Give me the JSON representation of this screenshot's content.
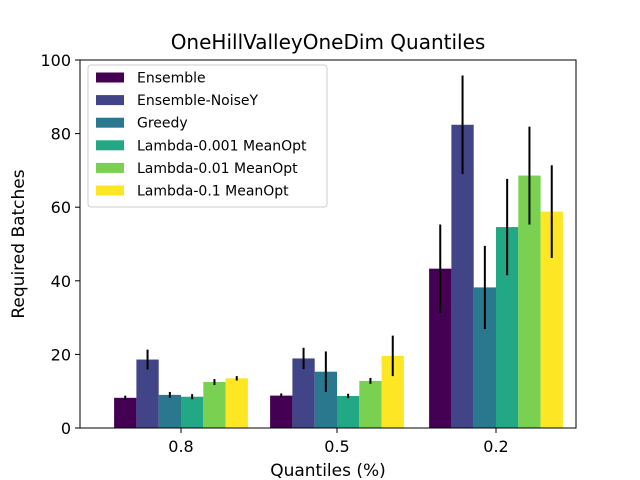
{
  "chart_data": {
    "type": "bar",
    "title": "OneHillValleyOneDim Quantiles",
    "xlabel": "Quantiles (%)",
    "ylabel": "Required Batches",
    "categories": [
      "0.8",
      "0.5",
      "0.2"
    ],
    "ylim": [
      0,
      100
    ],
    "yticks": [
      0,
      20,
      40,
      60,
      80,
      100
    ],
    "legend_position": "top-left",
    "grid": false,
    "series": [
      {
        "name": "Ensemble",
        "color": "#440154",
        "values": [
          8.2,
          8.8,
          43.3
        ],
        "errors": [
          0.6,
          0.6,
          12.0
        ]
      },
      {
        "name": "Ensemble-NoiseY",
        "color": "#414487",
        "values": [
          18.6,
          18.9,
          82.4
        ],
        "errors": [
          2.7,
          2.9,
          13.4
        ]
      },
      {
        "name": "Greedy",
        "color": "#2a788e",
        "values": [
          9.0,
          15.3,
          38.2
        ],
        "errors": [
          0.8,
          5.5,
          11.3
        ]
      },
      {
        "name": "Lambda-0.001 MeanOpt",
        "color": "#22a884",
        "values": [
          8.5,
          8.7,
          54.6
        ],
        "errors": [
          0.7,
          0.6,
          13.1
        ]
      },
      {
        "name": "Lambda-0.01 MeanOpt",
        "color": "#7ad151",
        "values": [
          12.5,
          12.8,
          68.6
        ],
        "errors": [
          0.8,
          0.8,
          13.3
        ]
      },
      {
        "name": "Lambda-0.1 MeanOpt",
        "color": "#fde725",
        "values": [
          13.5,
          19.6,
          58.8
        ],
        "errors": [
          0.6,
          5.5,
          12.6
        ]
      }
    ]
  }
}
